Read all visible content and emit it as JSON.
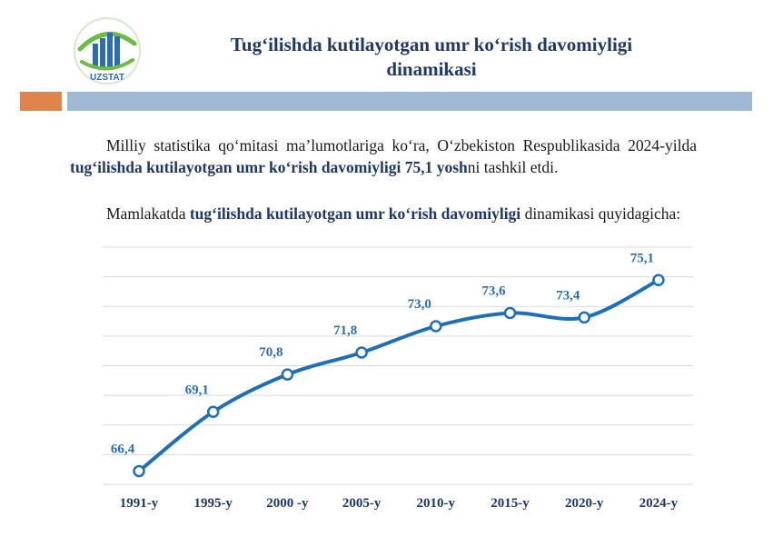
{
  "header": {
    "title_line1": "Tug‘ilishda kutilayotgan umr ko‘rish davomiyligi",
    "title_line2": "dinamikasi",
    "logo_text": "UZSTAT"
  },
  "text": {
    "p1_part1": "Milliy statistika qo‘mitasi ma’lumotlariga ko‘ra, O‘zbekiston Respublikasida 2024-yilda ",
    "p1_bold": "tug‘ilishda kutilayotgan umr ko‘rish davomiyligi 75,1 yosh",
    "p1_part2": "ni tashkil etdi.",
    "p2_part1": "Mamlakatda ",
    "p2_bold": "tug‘ilishda kutilayotgan umr ko‘rish davomiyligi",
    "p2_part2": " dinamikasi quyidagicha:"
  },
  "colors": {
    "line": "#1f6fb5",
    "label": "#2a6fae",
    "axis_label": "#1f3864",
    "grid": "#d9d9d9",
    "accent_orange": "#e0844b",
    "accent_blue": "#9fb9d2"
  },
  "chart_data": {
    "type": "line",
    "categories": [
      "1991-y",
      "1995-y",
      "2000 -y",
      "2005-y",
      "2010-y",
      "2015-y",
      "2020-y",
      "2024-y"
    ],
    "values": [
      66.4,
      69.1,
      70.8,
      71.8,
      73.0,
      73.6,
      73.4,
      75.1
    ],
    "value_labels": [
      "66,4",
      "69,1",
      "70,8",
      "71,8",
      "73,0",
      "73,6",
      "73,4",
      "75,1"
    ],
    "ylim": [
      65.8,
      76.6
    ],
    "grid": "horizontal",
    "legend": "none"
  }
}
